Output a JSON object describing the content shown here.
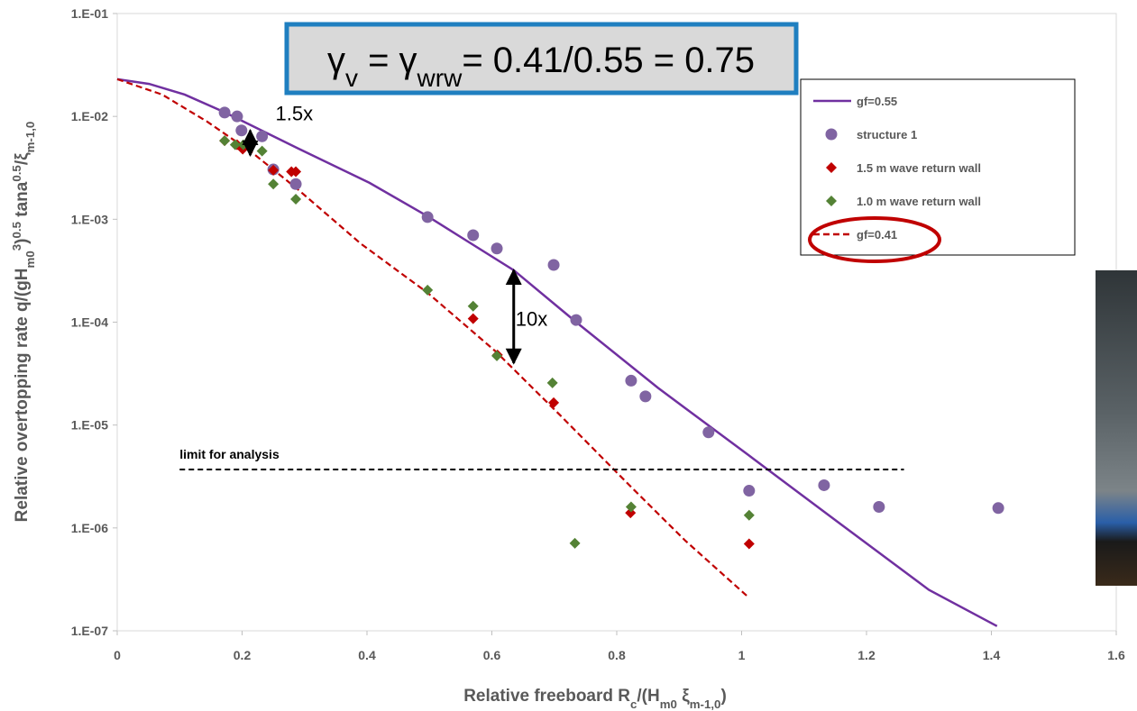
{
  "chart_data": {
    "type": "scatter",
    "x_label": [
      {
        "t": "Relative freeboard R"
      },
      {
        "sub": "c"
      },
      {
        "t": "/(H"
      },
      {
        "sub": "m0"
      },
      {
        "t": " ξ"
      },
      {
        "sub": "m-1,0"
      },
      {
        "t": ")"
      }
    ],
    "y_label": [
      {
        "t": "Relative overtopping rate q/(gH"
      },
      {
        "sub": "m0"
      },
      {
        "sup": "3"
      },
      {
        "t": ")"
      },
      {
        "sup": "0.5"
      },
      {
        "t": " tana"
      },
      {
        "sup": "0.5"
      },
      {
        "t": "/ξ"
      },
      {
        "sub": "m-1,0"
      }
    ],
    "xlim": [
      0,
      1.6
    ],
    "xticks": [
      0,
      0.2,
      0.4,
      0.6,
      0.8,
      1,
      1.2,
      1.4,
      1.6
    ],
    "ylim": [
      1e-07,
      0.1
    ],
    "y_scale": "log",
    "yticks": [
      {
        "value": 1e-07,
        "label": "1.E-07"
      },
      {
        "value": 1e-06,
        "label": "1.E-06"
      },
      {
        "value": 1e-05,
        "label": "1.E-05"
      },
      {
        "value": 0.0001,
        "label": "1.E-04"
      },
      {
        "value": 0.001,
        "label": "1.E-03"
      },
      {
        "value": 0.01,
        "label": "1.E-02"
      },
      {
        "value": 0.1,
        "label": "1.E-01"
      }
    ],
    "grid": false,
    "legend": "upper right",
    "series": [
      {
        "name": "gf=0.55",
        "style": "line",
        "color": "#7030a0",
        "x": [
          0,
          0.051,
          0.108,
          0.173,
          0.289,
          0.404,
          0.497,
          0.635,
          0.736,
          0.866,
          1.011,
          1.155,
          1.3,
          1.409
        ],
        "values": [
          0.023,
          0.0207,
          0.0163,
          0.0109,
          0.0049,
          0.00226,
          0.00107,
          0.00032,
          9.9e-05,
          2.3e-05,
          5.1e-06,
          1.13e-06,
          2.5e-07,
          1.11e-07
        ]
      },
      {
        "name": "structure 1",
        "style": "circle",
        "color": "#8064a2",
        "x": [
          0.172,
          0.192,
          0.199,
          0.232,
          0.25,
          0.286,
          0.497,
          0.57,
          0.608,
          0.699,
          0.735,
          0.823,
          0.846,
          0.947,
          1.012,
          1.132,
          1.22,
          1.411
        ],
        "values": [
          0.0109,
          0.01,
          0.0073,
          0.0064,
          0.00305,
          0.0022,
          0.00105,
          0.0007,
          0.00052,
          0.00036,
          0.000105,
          2.7e-05,
          1.9e-05,
          8.5e-06,
          2.3e-06,
          2.6e-06,
          1.6e-06,
          1.56e-06
        ]
      },
      {
        "name": "1.5 m wave return wall",
        "style": "diamond",
        "color": "#c00000",
        "x": [
          0.172,
          0.192,
          0.201,
          0.25,
          0.279,
          0.286,
          0.57,
          0.609,
          0.699,
          0.822,
          1.012
        ],
        "values": [
          0.0058,
          0.0053,
          0.0048,
          0.003,
          0.0029,
          0.0029,
          0.000108,
          4.8e-05,
          1.65e-05,
          1.4e-06,
          7e-07
        ]
      },
      {
        "name": "1.0 m wave return wall",
        "style": "diamond",
        "color": "#548235",
        "x": [
          0.172,
          0.189,
          0.202,
          0.232,
          0.25,
          0.286,
          0.497,
          0.57,
          0.608,
          0.697,
          0.733,
          0.823,
          1.012
        ],
        "values": [
          0.0058,
          0.0053,
          0.0053,
          0.0046,
          0.0022,
          0.00157,
          0.000205,
          0.000143,
          4.7e-05,
          2.57e-05,
          7.1e-07,
          1.6e-06,
          1.33e-06
        ]
      },
      {
        "name": "gf=0.41",
        "style": "dashed",
        "color": "#c00000",
        "x": [
          0,
          0.072,
          0.144,
          0.217,
          0.289,
          0.39,
          0.497,
          0.606,
          0.708,
          0.823,
          0.91,
          1.008
        ],
        "values": [
          0.023,
          0.0163,
          0.0089,
          0.0044,
          0.00196,
          0.00058,
          0.000193,
          5.2e-05,
          1.27e-05,
          2.5e-06,
          7.5e-07,
          2.2e-07
        ]
      }
    ],
    "limit": {
      "label": "limit for analysis",
      "x": [
        0.1,
        1.26
      ],
      "y": 3.7e-06
    },
    "annotations": [
      {
        "text": "1.5x",
        "x": 0.213,
        "y": [
          0.0073,
          0.0042
        ]
      },
      {
        "text": "10x",
        "x": 0.635,
        "y": [
          0.00032,
          4e-05
        ]
      }
    ],
    "formula": [
      {
        "t": "γ"
      },
      {
        "sub": "v"
      },
      {
        "t": " = γ"
      },
      {
        "sub": "wrw"
      },
      {
        "t": "= 0.41/0.55 = 0.75"
      }
    ]
  }
}
